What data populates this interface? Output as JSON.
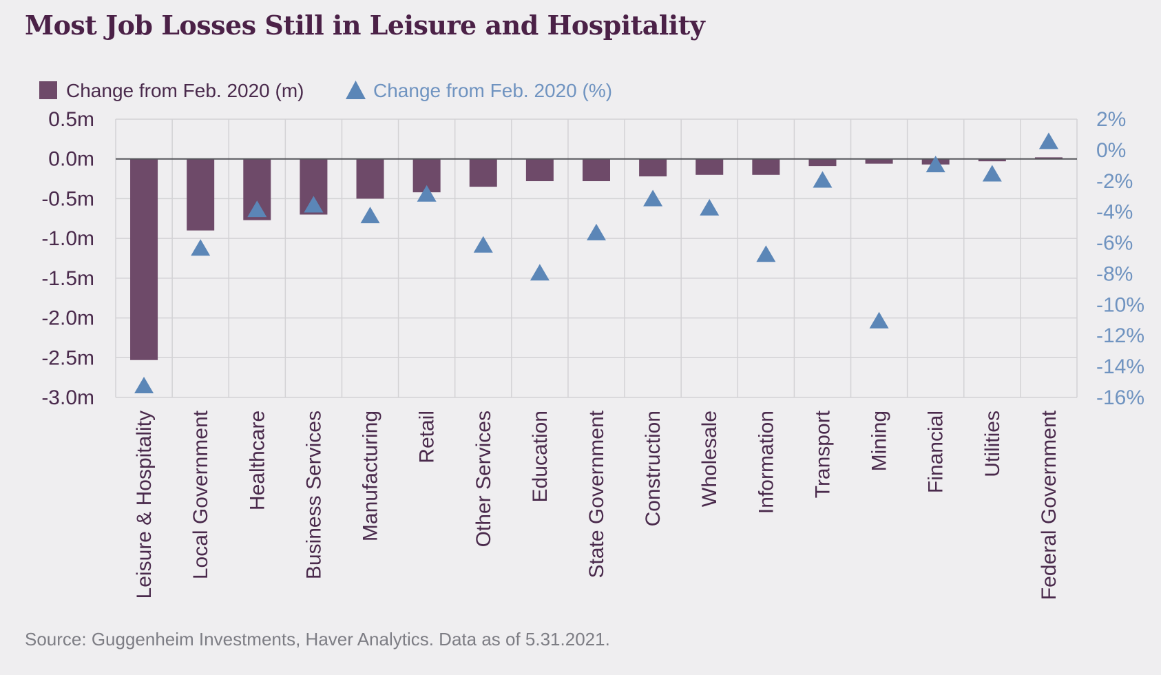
{
  "title": "Most Job Losses Still in Leisure and Hospitality",
  "source": "Source: Guggenheim Investments, Haver Analytics. Data as of 5.31.2021.",
  "colors": {
    "bars": "#6e4a69",
    "markers": "#5b86b7",
    "grid": "#d3d2d5",
    "zero_line": "#55555a"
  },
  "chart_data": {
    "type": "bar",
    "categories": [
      "Leisure & Hospitality",
      "Local Government",
      "Healthcare",
      "Business Services",
      "Manufacturing",
      "Retail",
      "Other Services",
      "Education",
      "State Government",
      "Construction",
      "Wholesale",
      "Information",
      "Transport",
      "Mining",
      "Financial",
      "Utilities",
      "Federal Government"
    ],
    "series": [
      {
        "name": "Change from Feb. 2020 (m)",
        "axis": "left",
        "mark": "bar",
        "values": [
          -2.53,
          -0.9,
          -0.77,
          -0.7,
          -0.5,
          -0.42,
          -0.35,
          -0.28,
          -0.28,
          -0.22,
          -0.2,
          -0.2,
          -0.09,
          -0.06,
          -0.07,
          -0.03,
          0.02
        ]
      },
      {
        "name": "Change from Feb. 2020 (%)",
        "axis": "right",
        "mark": "triangle",
        "values": [
          -15.2,
          -6.3,
          -3.8,
          -3.5,
          -4.2,
          -2.8,
          -6.1,
          -7.9,
          -5.3,
          -3.1,
          -3.7,
          -6.7,
          -1.9,
          -11.0,
          -0.9,
          -1.5,
          0.6
        ]
      }
    ],
    "y_left": {
      "ticks": [
        "0.5m",
        "0.0m",
        "-0.5m",
        "-1.0m",
        "-1.5m",
        "-2.0m",
        "-2.5m",
        "-3.0m"
      ],
      "range": [
        -3.0,
        0.5
      ]
    },
    "y_right": {
      "ticks": [
        "2%",
        "0%",
        "-2%",
        "-4%",
        "-6%",
        "-8%",
        "-10%",
        "-12%",
        "-14%",
        "-16%"
      ],
      "range": [
        -16,
        2
      ]
    },
    "grid": true,
    "legend": "top-left"
  }
}
